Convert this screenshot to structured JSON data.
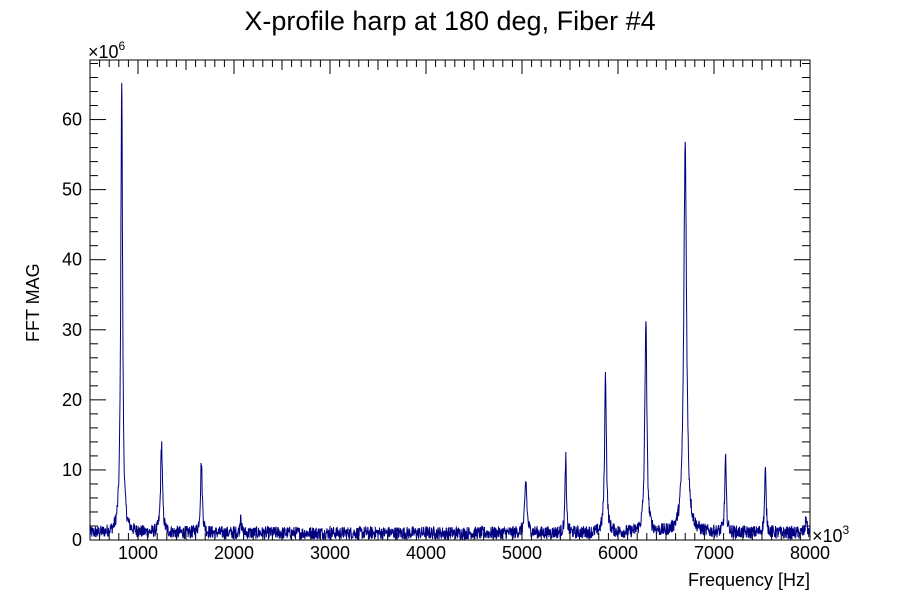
{
  "chart_data": {
    "type": "line",
    "title": "X-profile harp at 180 deg, Fiber #4",
    "xlabel": "Frequency [Hz]",
    "ylabel": "FFT MAG",
    "x_multiplier": {
      "base": "×10",
      "exponent": "3"
    },
    "y_multiplier": {
      "base": "×10",
      "exponent": "6"
    },
    "xlim": [
      500,
      8000
    ],
    "ylim": [
      0,
      68.5
    ],
    "x_ticks": [
      "1000",
      "2000",
      "3000",
      "4000",
      "5000",
      "6000",
      "7000",
      "8000"
    ],
    "y_ticks": [
      "0",
      "10",
      "20",
      "30",
      "40",
      "50",
      "60"
    ],
    "line_color": "#000080",
    "series": [
      {
        "baseline": 1.0,
        "noise": 0.9,
        "peaks": [
          {
            "x": 830,
            "y": 65.3,
            "width": 14
          },
          {
            "x": 1245,
            "y": 13.0,
            "width": 14
          },
          {
            "x": 1660,
            "y": 10.2,
            "width": 14
          },
          {
            "x": 2070,
            "y": 3.0,
            "width": 8
          },
          {
            "x": 5040,
            "y": 7.5,
            "width": 16
          },
          {
            "x": 5455,
            "y": 11.0,
            "width": 10
          },
          {
            "x": 5870,
            "y": 23.0,
            "width": 14
          },
          {
            "x": 6290,
            "y": 30.5,
            "width": 16
          },
          {
            "x": 6700,
            "y": 55.5,
            "width": 22
          },
          {
            "x": 7120,
            "y": 10.5,
            "width": 12
          },
          {
            "x": 7535,
            "y": 8.8,
            "width": 12
          },
          {
            "x": 7960,
            "y": 2.5,
            "width": 10
          }
        ]
      }
    ],
    "grid": false
  }
}
